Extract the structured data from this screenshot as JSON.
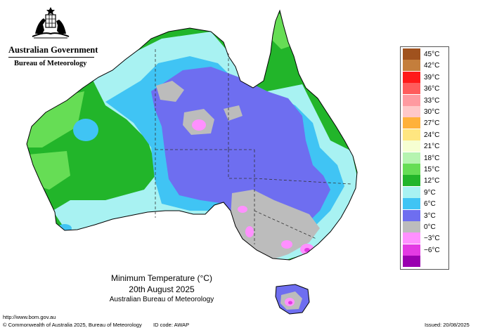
{
  "header": {
    "government_name": "Australian Government",
    "bureau_name": "Bureau of Meteorology"
  },
  "map": {
    "title": "Minimum Temperature (°C)",
    "date": "20th August 2025",
    "source": "Australian Bureau of Meteorology"
  },
  "legend": [
    {
      "label": "45°C",
      "color": "#a0521e"
    },
    {
      "label": "42°C",
      "color": "#c47e3c"
    },
    {
      "label": "39°C",
      "color": "#ff1a1a"
    },
    {
      "label": "36°C",
      "color": "#ff5c5c"
    },
    {
      "label": "33°C",
      "color": "#ff9aa0"
    },
    {
      "label": "30°C",
      "color": "#ffc8c8"
    },
    {
      "label": "27°C",
      "color": "#ffb13a"
    },
    {
      "label": "24°C",
      "color": "#ffe680"
    },
    {
      "label": "21°C",
      "color": "#f6ffd2"
    },
    {
      "label": "18°C",
      "color": "#b6f4b0"
    },
    {
      "label": "15°C",
      "color": "#66dd55"
    },
    {
      "label": "12°C",
      "color": "#22b52a"
    },
    {
      "label": "9°C",
      "color": "#a8f2f2"
    },
    {
      "label": "6°C",
      "color": "#40c4f4"
    },
    {
      "label": "3°C",
      "color": "#6e6ef0"
    },
    {
      "label": "0°C",
      "color": "#bcbcbc"
    },
    {
      "label": "−3°C",
      "color": "#ff90ff"
    },
    {
      "label": "−6°C",
      "color": "#e33ae3"
    },
    {
      "label": "",
      "color": "#9a00b0"
    }
  ],
  "footer": {
    "url": "http://www.bom.gov.au",
    "copyright": "© Commonwealth of Australia 2025, Bureau of Meteorology",
    "id_code": "ID code: AWAP",
    "issued": "Issued: 20/08/2025"
  }
}
